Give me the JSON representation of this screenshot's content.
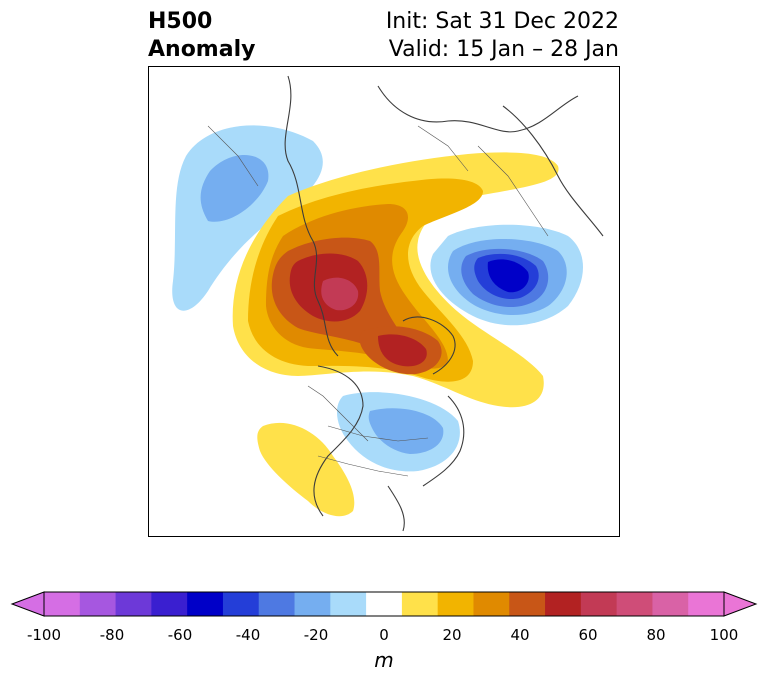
{
  "title": {
    "left_line1": "H500",
    "left_line2": "Anomaly",
    "right_line1": "Init: Sat 31 Dec 2022",
    "right_line2": "Valid: 15 Jan – 28 Jan"
  },
  "colorbar": {
    "unit": "m",
    "ticks": [
      "-100",
      "-80",
      "-60",
      "-40",
      "-20",
      "0",
      "20",
      "40",
      "60",
      "80",
      "100"
    ],
    "levels": [
      -100,
      -90,
      -80,
      -70,
      -60,
      -50,
      -40,
      -30,
      -20,
      -10,
      10,
      20,
      30,
      40,
      50,
      60,
      70,
      80,
      90,
      100
    ],
    "colors": [
      "#d56ee4",
      "#a657e0",
      "#6d39d8",
      "#3a1fd0",
      "#0000c8",
      "#243ed8",
      "#4e79e2",
      "#75aef0",
      "#a9dbfa",
      "#ffffff",
      "#ffe14a",
      "#f2b400",
      "#e08a00",
      "#c85617",
      "#b22222",
      "#c23a55",
      "#cf4d78",
      "#d962a6",
      "#ea75d6"
    ],
    "extend_low": "#d56ee4",
    "extend_high": "#ea75d6"
  },
  "map": {
    "projection": "polar stereographic (north)",
    "field": "500 hPa geopotential height anomaly",
    "features": [
      {
        "name": "positive-anomaly-alaska-arctic",
        "sign": "positive",
        "peak_m": 70
      },
      {
        "name": "positive-anomaly-greenland",
        "sign": "positive",
        "peak_m": 60
      },
      {
        "name": "negative-anomaly-siberia",
        "sign": "negative",
        "peak_m": -60
      },
      {
        "name": "negative-anomaly-europe-atlantic",
        "sign": "negative",
        "peak_m": -30
      },
      {
        "name": "negative-anomaly-eastern-north-america",
        "sign": "negative",
        "peak_m": -30
      },
      {
        "name": "positive-anomaly-western-us",
        "sign": "positive",
        "peak_m": 10
      }
    ]
  }
}
